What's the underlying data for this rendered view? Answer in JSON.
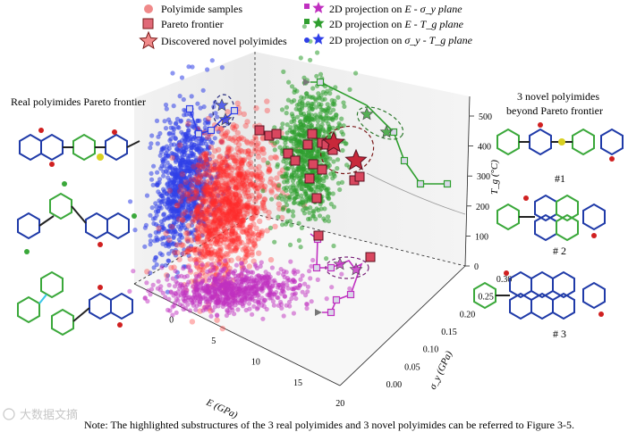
{
  "chart_data": {
    "type": "scatter",
    "projection": "3d",
    "axes": {
      "x": {
        "label": "E (GPa)",
        "ticks": [
          "0",
          "5",
          "10",
          "15",
          "20"
        ],
        "range": [
          0,
          20
        ]
      },
      "y": {
        "label": "σ_y (GPa)",
        "ticks": [
          "0.00",
          "0.05",
          "0.10",
          "0.15",
          "0.20",
          "0.25",
          "0.30"
        ],
        "range": [
          0,
          0.3
        ]
      },
      "z": {
        "label": "T_g (°C)",
        "ticks": [
          "0",
          "100",
          "200",
          "300",
          "400",
          "500"
        ],
        "range": [
          0,
          500
        ]
      }
    },
    "legend": {
      "placement": "top",
      "left": [
        {
          "label": "Polyimide samples",
          "marker": "circle",
          "color": "#f08a8a"
        },
        {
          "label": "Pareto frontier",
          "marker": "square",
          "color": "#e06a78"
        },
        {
          "label": "Discovered novel polyimides",
          "marker": "star",
          "color": "#f08a8a"
        }
      ],
      "right": [
        {
          "prefix": "2D projection on ",
          "label": "E - σ_y plane",
          "color": "#c030c0"
        },
        {
          "prefix": "2D projection on ",
          "label": "E - T_g plane",
          "color": "#30a030"
        },
        {
          "prefix": "2D projection on ",
          "label": "σ_y - T_g plane",
          "color": "#3040e0"
        }
      ]
    },
    "series": [
      {
        "name": "Pareto frontier",
        "points": [
          {
            "E": 11.5,
            "sy": 0.24,
            "Tg": 410
          },
          {
            "E": 12.0,
            "sy": 0.22,
            "Tg": 390
          },
          {
            "E": 13.0,
            "sy": 0.25,
            "Tg": 375
          },
          {
            "E": 14.0,
            "sy": 0.21,
            "Tg": 360
          },
          {
            "E": 15.0,
            "sy": 0.18,
            "Tg": 340
          },
          {
            "E": 16.0,
            "sy": 0.16,
            "Tg": 330
          },
          {
            "E": 17.0,
            "sy": 0.14,
            "Tg": 310
          },
          {
            "E": 18.5,
            "sy": 0.12,
            "Tg": 280
          }
        ]
      },
      {
        "name": "Discovered novel polyimides",
        "points": [
          {
            "E": 15.5,
            "sy": 0.22,
            "Tg": 420
          },
          {
            "E": 16.5,
            "sy": 0.2,
            "Tg": 430
          },
          {
            "E": 18.0,
            "sy": 0.22,
            "Tg": 440
          }
        ]
      }
    ],
    "colors": {
      "samples": "#ff2a2a",
      "pareto": "#d9475f",
      "star": "#f08a8a",
      "e_sy": "#c030c0",
      "e_tg": "#2e9e2e",
      "sy_tg": "#2f3fe8"
    }
  },
  "panels": {
    "left_title": "Real polyimides Pareto frontier",
    "right_title_line1": "3 novel polyimides",
    "right_title_line2": "beyond Pareto frontier",
    "labels": [
      "#1",
      "# 2",
      "# 3"
    ]
  },
  "note": "Note: The highlighted substructures of the 3 real polyimides and 3 novel polyimides can be referred to Figure 3-5.",
  "watermark": "大数据文摘"
}
